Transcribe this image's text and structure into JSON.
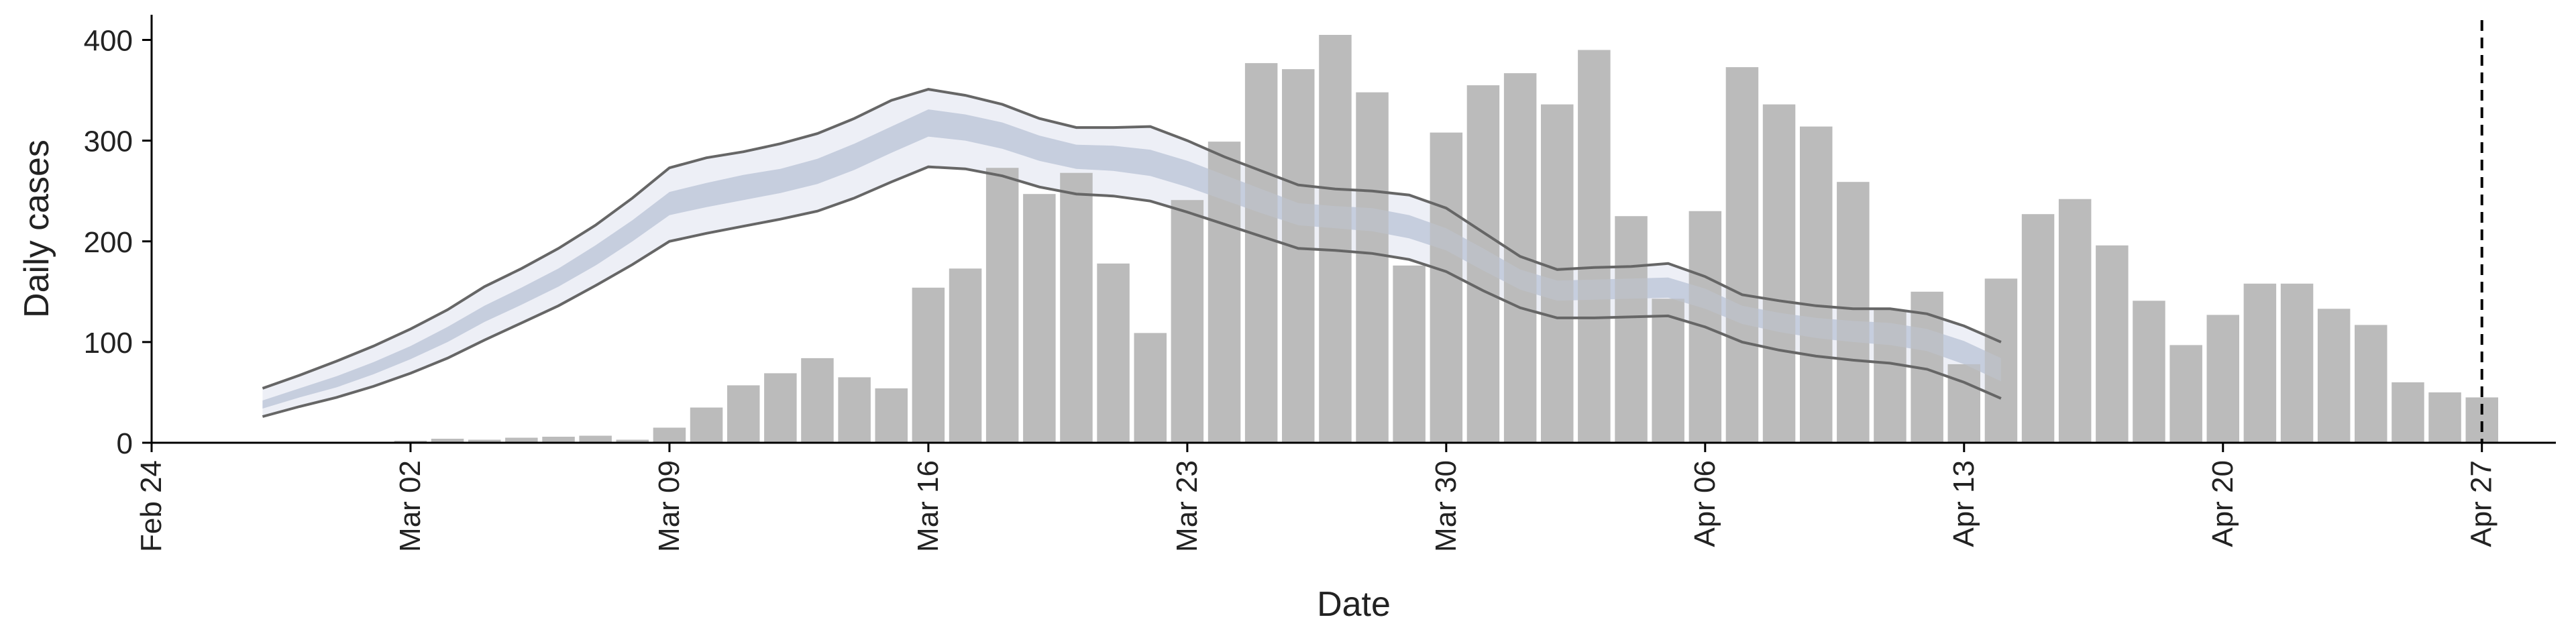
{
  "chart_data": {
    "type": "bar",
    "xlabel": "Date",
    "ylabel": "Daily cases",
    "ylim": [
      0,
      425
    ],
    "xlim": [
      "2020-02-24",
      "2020-04-29"
    ],
    "y_ticks": [
      0,
      100,
      200,
      300,
      400
    ],
    "x_ticks": [
      {
        "date": "2020-02-24",
        "label": "Feb 24"
      },
      {
        "date": "2020-03-02",
        "label": "Mar 02"
      },
      {
        "date": "2020-03-09",
        "label": "Mar 09"
      },
      {
        "date": "2020-03-16",
        "label": "Mar 16"
      },
      {
        "date": "2020-03-23",
        "label": "Mar 23"
      },
      {
        "date": "2020-03-30",
        "label": "Mar 30"
      },
      {
        "date": "2020-04-06",
        "label": "Apr 06"
      },
      {
        "date": "2020-04-13",
        "label": "Apr 13"
      },
      {
        "date": "2020-04-20",
        "label": "Apr 20"
      },
      {
        "date": "2020-04-27",
        "label": "Apr 27"
      }
    ],
    "grid": false,
    "vline_date": "2020-04-27",
    "bars": {
      "start_date": "2020-03-02",
      "color": "#bbbbbb",
      "values": [
        2,
        4,
        3,
        5,
        6,
        7,
        3,
        15,
        35,
        57,
        69,
        84,
        65,
        54,
        154,
        173,
        273,
        247,
        268,
        178,
        109,
        241,
        299,
        377,
        371,
        405,
        348,
        176,
        308,
        355,
        367,
        336,
        390,
        225,
        143,
        230,
        373,
        336,
        314,
        259,
        132,
        150,
        78,
        163,
        227,
        242,
        196,
        141,
        97,
        127,
        158,
        158,
        133,
        117,
        60,
        50,
        45
      ]
    },
    "band": {
      "start_date": "2020-02-27",
      "outer_color": "#eaecf4",
      "inner_color": "#c3cbdd",
      "edge_color": "#666666",
      "outer_upper": [
        54,
        67,
        81,
        96,
        113,
        132,
        155,
        173,
        193,
        216,
        243,
        273,
        283,
        289,
        297,
        307,
        322,
        340,
        351,
        345,
        336,
        322,
        313,
        313,
        314,
        300,
        284,
        270,
        256,
        252,
        250,
        246,
        233,
        209,
        185,
        172,
        174,
        175,
        178,
        165,
        147,
        141,
        136,
        133,
        133,
        128,
        116,
        100
      ],
      "inner_upper": [
        42,
        54,
        66,
        80,
        96,
        115,
        136,
        154,
        173,
        196,
        221,
        249,
        258,
        266,
        272,
        282,
        297,
        314,
        331,
        326,
        318,
        305,
        296,
        295,
        291,
        280,
        266,
        252,
        238,
        235,
        233,
        226,
        213,
        193,
        172,
        161,
        162,
        163,
        164,
        153,
        136,
        129,
        124,
        121,
        119,
        113,
        101,
        84
      ],
      "inner_lower": [
        34,
        45,
        55,
        68,
        83,
        100,
        120,
        137,
        155,
        176,
        200,
        226,
        234,
        241,
        248,
        257,
        271,
        288,
        304,
        300,
        292,
        280,
        272,
        270,
        265,
        254,
        241,
        228,
        216,
        213,
        210,
        203,
        191,
        171,
        152,
        141,
        142,
        143,
        144,
        133,
        118,
        110,
        104,
        100,
        97,
        91,
        78,
        61
      ],
      "outer_lower": [
        26,
        36,
        45,
        56,
        69,
        84,
        102,
        119,
        136,
        156,
        177,
        200,
        208,
        215,
        222,
        230,
        243,
        259,
        274,
        272,
        265,
        254,
        247,
        245,
        240,
        229,
        217,
        205,
        193,
        191,
        188,
        182,
        170,
        151,
        134,
        124,
        124,
        125,
        126,
        115,
        100,
        92,
        86,
        82,
        79,
        73,
        60,
        44
      ]
    }
  }
}
